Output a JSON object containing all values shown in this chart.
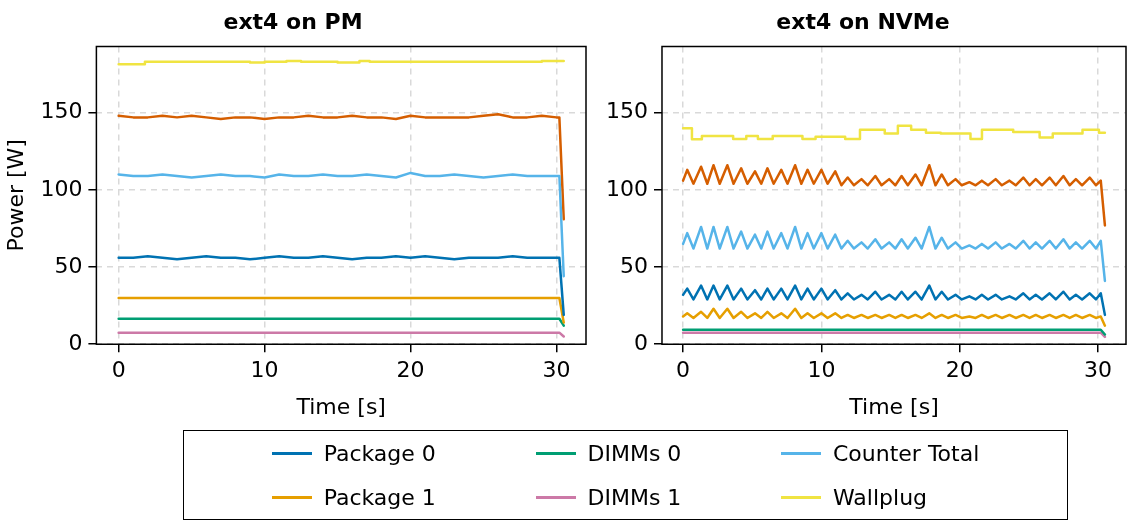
{
  "chart_data": [
    {
      "type": "line",
      "title": "ext4 on PM",
      "xlabel": "Time [s]",
      "ylabel": "Power [W]",
      "xlim": [
        -1.525,
        32.025
      ],
      "xticks": [
        0,
        10,
        20,
        30
      ],
      "ylim": [
        0,
        193
      ],
      "yticks": [
        0,
        50,
        100,
        150
      ],
      "grid": true,
      "legend": "bottom",
      "x": [
        0,
        1,
        2,
        3,
        4,
        5,
        6,
        7,
        8,
        9,
        10,
        11,
        12,
        13,
        14,
        15,
        16,
        17,
        18,
        19,
        20,
        21,
        22,
        23,
        24,
        25,
        26,
        27,
        28,
        29,
        30,
        30.2,
        30.5
      ],
      "series": [
        {
          "name": "Package 0",
          "color": "#0072b2",
          "values": [
            56,
            56,
            57,
            56,
            55,
            56,
            57,
            56,
            56,
            55,
            56,
            57,
            56,
            56,
            57,
            56,
            55,
            56,
            56,
            57,
            56,
            57,
            56,
            55,
            56,
            56,
            56,
            57,
            56,
            56,
            56,
            56,
            19
          ]
        },
        {
          "name": "Package 1",
          "color": "#e69f00",
          "x": [
            0,
            30.2,
            30.5
          ],
          "values": [
            30,
            30,
            14
          ]
        },
        {
          "name": "DIMMs 0",
          "color": "#009e73",
          "x": [
            0,
            30.2,
            30.5
          ],
          "values": [
            16.5,
            16.5,
            12
          ]
        },
        {
          "name": "DIMMs 1",
          "color": "#cc79a7",
          "x": [
            0,
            30.2,
            30.5
          ],
          "values": [
            7.5,
            7.5,
            5
          ]
        },
        {
          "name": "Counter Total",
          "color": "#56b4e9",
          "values": [
            110,
            109,
            109,
            110,
            109,
            108,
            109,
            110,
            109,
            109,
            108,
            110,
            109,
            109,
            110,
            109,
            109,
            110,
            109,
            108,
            111,
            109,
            109,
            110,
            109,
            108,
            109,
            110,
            109,
            109,
            109,
            109,
            44
          ]
        },
        {
          "color": "#d55e00",
          "values": [
            148,
            147,
            147,
            148,
            147,
            148,
            147,
            146,
            147,
            147,
            146,
            147,
            147,
            148,
            147,
            147,
            148,
            147,
            147,
            146,
            148,
            147,
            147,
            147,
            147,
            148,
            149,
            147,
            147,
            148,
            147,
            147,
            81
          ]
        },
        {
          "name": "Wallplug",
          "color": "#f0e442",
          "x": [
            0,
            1.8,
            1.8,
            9,
            9,
            10,
            10,
            11.5,
            11.5,
            12.5,
            12.5,
            15,
            15,
            16.5,
            16.5,
            17.2,
            17.2,
            29,
            29,
            30.5
          ],
          "values": [
            181.5,
            181.5,
            183,
            183,
            182.5,
            182.5,
            183,
            183,
            183.5,
            183.5,
            183,
            183,
            182.5,
            182.5,
            183.5,
            183.5,
            183,
            183,
            183.5,
            183.5
          ]
        }
      ]
    },
    {
      "type": "line",
      "title": "ext4 on NVMe",
      "xlabel": "Time [s]",
      "xlim": [
        -1.525,
        32.025
      ],
      "xticks": [
        0,
        10,
        20,
        30
      ],
      "ylim": [
        0,
        193
      ],
      "yticks": [
        0,
        50,
        100,
        150
      ],
      "grid": true,
      "x": [
        0,
        0.3,
        0.75,
        1.3,
        1.75,
        2.2,
        2.65,
        3.2,
        3.65,
        4.2,
        4.65,
        5.2,
        5.65,
        6.1,
        6.55,
        7.1,
        7.55,
        8.1,
        8.55,
        9.0,
        9.45,
        10.0,
        10.45,
        11.0,
        11.45,
        11.9,
        12.35,
        12.9,
        13.35,
        13.9,
        14.35,
        14.9,
        15.35,
        15.8,
        16.25,
        16.8,
        17.25,
        17.8,
        18.25,
        18.7,
        19.15,
        19.7,
        20.15,
        20.7,
        21.15,
        21.6,
        22.05,
        22.6,
        23.05,
        23.6,
        24.05,
        24.6,
        25.05,
        25.5,
        25.95,
        26.5,
        26.95,
        27.5,
        27.95,
        28.4,
        28.85,
        29.4,
        29.85,
        30.2,
        30.5
      ],
      "series": [
        {
          "color": "#0072b2",
          "values": [
            32,
            36,
            29,
            38,
            29,
            38,
            29,
            38,
            29,
            36,
            29,
            35,
            29,
            36,
            29,
            36,
            29,
            38,
            29,
            36,
            29,
            36,
            29,
            35,
            29,
            33,
            29,
            32,
            29,
            34,
            29,
            32,
            29,
            34,
            29,
            34,
            29,
            38,
            29,
            34,
            29,
            32,
            29,
            31,
            29,
            32,
            29,
            32,
            29,
            31,
            29,
            33,
            29,
            32,
            29,
            33,
            29,
            34,
            29,
            32,
            29,
            33,
            29,
            33,
            19
          ]
        },
        {
          "color": "#e69f00",
          "values": [
            18,
            20,
            17,
            21,
            17,
            23,
            17,
            23,
            17,
            21,
            17,
            20,
            17,
            21,
            17,
            20,
            17,
            23,
            17,
            20,
            17,
            20,
            17,
            20,
            17,
            19,
            17,
            19,
            17,
            19,
            17,
            19,
            17,
            19,
            17,
            19,
            17,
            20,
            17,
            19,
            17,
            19,
            17,
            18,
            17,
            19,
            17,
            19,
            17,
            19,
            17,
            19,
            17,
            19,
            17,
            19,
            17,
            19,
            17,
            19,
            17,
            19,
            17,
            18,
            12
          ]
        },
        {
          "color": "#009e73",
          "x": [
            0,
            30.2,
            30.5
          ],
          "values": [
            9.4,
            9.4,
            6.3
          ]
        },
        {
          "color": "#cc79a7",
          "x": [
            0,
            30.2,
            30.5
          ],
          "values": [
            7.5,
            7.5,
            4.7
          ]
        },
        {
          "color": "#56b4e9",
          "values": [
            65,
            72,
            62,
            76,
            62,
            76,
            62,
            76,
            62,
            73,
            62,
            71,
            62,
            73,
            62,
            72,
            62,
            76,
            62,
            72,
            62,
            72,
            62,
            71,
            62,
            67,
            62,
            66,
            62,
            68,
            62,
            66,
            62,
            68,
            62,
            69,
            62,
            76,
            62,
            69,
            62,
            66,
            62,
            64,
            62,
            65,
            62,
            66,
            62,
            65,
            62,
            67,
            62,
            66,
            62,
            67,
            62,
            68,
            62,
            66,
            62,
            67,
            62,
            67,
            41
          ]
        },
        {
          "color": "#d55e00",
          "values": [
            106,
            113,
            104,
            115,
            104,
            116,
            104,
            116,
            104,
            114,
            104,
            112,
            104,
            114,
            104,
            113,
            104,
            116,
            104,
            113,
            104,
            113,
            104,
            112,
            103,
            108,
            103,
            107,
            103,
            109,
            103,
            107,
            103,
            109,
            103,
            110,
            103,
            116,
            103,
            110,
            103,
            107,
            103,
            105,
            103,
            106,
            103,
            107,
            103,
            106,
            103,
            108,
            103,
            107,
            103,
            108,
            103,
            109,
            103,
            107,
            103,
            108,
            103,
            106,
            77
          ]
        },
        {
          "color": "#f0e442",
          "x": [
            0,
            0.64,
            0.64,
            1.36,
            1.36,
            3.62,
            3.62,
            4.57,
            4.57,
            5.41,
            5.41,
            6.48,
            6.48,
            8.63,
            8.63,
            9.58,
            9.58,
            11.72,
            11.72,
            12.79,
            12.79,
            14.58,
            14.58,
            15.53,
            15.53,
            16.49,
            16.49,
            17.56,
            17.56,
            18.63,
            18.63,
            20.78,
            20.78,
            21.61,
            21.61,
            23.87,
            23.87,
            25.78,
            25.78,
            26.73,
            26.73,
            28.88,
            28.88,
            30.07,
            30.07,
            30.5
          ],
          "values": [
            139.9,
            139.9,
            132.9,
            132.9,
            135,
            135,
            133,
            133,
            135,
            135,
            133,
            133,
            135,
            135,
            133,
            133,
            134.5,
            134.5,
            133,
            133,
            139,
            139,
            136.5,
            136.5,
            141.5,
            141.5,
            139,
            139,
            137,
            137,
            136.5,
            136.5,
            133,
            133,
            139,
            139,
            137.5,
            137.5,
            134,
            134,
            136.5,
            136.5,
            139,
            139,
            137,
            137
          ]
        }
      ]
    }
  ]
}
